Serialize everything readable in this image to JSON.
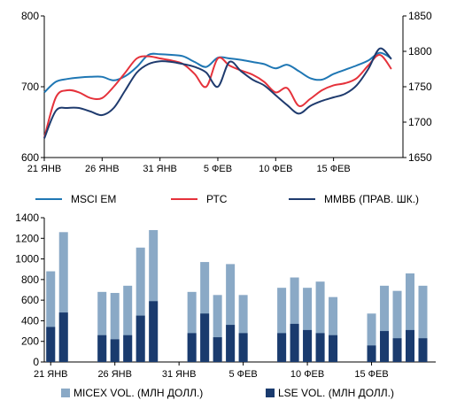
{
  "chart_data": [
    {
      "type": "line",
      "title": "",
      "xlabel": "",
      "ylabel": "",
      "x_tick_labels": [
        "21 ЯНВ",
        "26 ЯНВ",
        "31 ЯНВ",
        "5 ФЕВ",
        "10 ФЕВ",
        "15 ФЕВ"
      ],
      "x_tick_days": [
        0,
        5,
        10,
        15,
        20,
        25
      ],
      "ylim": [
        600,
        800
      ],
      "y_ticks": [
        "600",
        "700",
        "800"
      ],
      "y2lim": [
        1650,
        1850
      ],
      "y2_ticks": [
        "1650",
        "1700",
        "1750",
        "1800",
        "1850"
      ],
      "grid": false,
      "legend_position": "bottom",
      "series": [
        {
          "name": "MSCI EM",
          "axis": "left",
          "color": "#1f77b4",
          "points": [
            [
              0,
              692
            ],
            [
              1,
              707
            ],
            [
              2,
              711
            ],
            [
              3,
              713
            ],
            [
              4,
              714
            ],
            [
              5,
              714
            ],
            [
              6,
              709
            ],
            [
              7,
              715
            ],
            [
              8,
              728
            ],
            [
              9,
              745
            ],
            [
              10,
              746
            ],
            [
              11,
              745
            ],
            [
              12,
              743
            ],
            [
              13,
              735
            ],
            [
              14,
              728
            ],
            [
              15,
              741
            ],
            [
              16,
              740
            ],
            [
              17,
              738
            ],
            [
              18,
              735
            ],
            [
              19,
              732
            ],
            [
              20,
              726
            ],
            [
              21,
              731
            ],
            [
              22,
              722
            ],
            [
              23,
              712
            ],
            [
              24,
              710
            ],
            [
              25,
              718
            ],
            [
              26,
              724
            ],
            [
              27,
              730
            ],
            [
              28,
              737
            ],
            [
              29,
              748
            ],
            [
              30,
              740
            ]
          ]
        },
        {
          "name": "РТС",
          "axis": "left",
          "color": "#e5323b",
          "points": [
            [
              0,
              628
            ],
            [
              1,
              685
            ],
            [
              2,
              695
            ],
            [
              3,
              692
            ],
            [
              4,
              684
            ],
            [
              5,
              684
            ],
            [
              6,
              700
            ],
            [
              7,
              720
            ],
            [
              8,
              740
            ],
            [
              9,
              743
            ],
            [
              10,
              740
            ],
            [
              11,
              737
            ],
            [
              12,
              732
            ],
            [
              13,
              718
            ],
            [
              14,
              700
            ],
            [
              15,
              740
            ],
            [
              16,
              730
            ],
            [
              17,
              723
            ],
            [
              18,
              717
            ],
            [
              19,
              707
            ],
            [
              20,
              692
            ],
            [
              21,
              698
            ],
            [
              22,
              673
            ],
            [
              23,
              683
            ],
            [
              24,
              695
            ],
            [
              25,
              702
            ],
            [
              26,
              705
            ],
            [
              27,
              712
            ],
            [
              28,
              730
            ],
            [
              29,
              745
            ],
            [
              30,
              725
            ]
          ]
        },
        {
          "name": "ММВБ (ПРАВ. ШК.)",
          "axis": "right",
          "color": "#1f3b6e",
          "points": [
            [
              0,
              1677
            ],
            [
              1,
              1716
            ],
            [
              2,
              1720
            ],
            [
              3,
              1720
            ],
            [
              4,
              1715
            ],
            [
              5,
              1710
            ],
            [
              6,
              1720
            ],
            [
              7,
              1745
            ],
            [
              8,
              1770
            ],
            [
              9,
              1782
            ],
            [
              10,
              1786
            ],
            [
              11,
              1785
            ],
            [
              12,
              1782
            ],
            [
              13,
              1778
            ],
            [
              14,
              1770
            ],
            [
              15,
              1750
            ],
            [
              16,
              1785
            ],
            [
              17,
              1772
            ],
            [
              18,
              1760
            ],
            [
              19,
              1752
            ],
            [
              20,
              1738
            ],
            [
              21,
              1724
            ],
            [
              22,
              1712
            ],
            [
              23,
              1723
            ],
            [
              24,
              1730
            ],
            [
              25,
              1735
            ],
            [
              26,
              1740
            ],
            [
              27,
              1752
            ],
            [
              28,
              1775
            ],
            [
              29,
              1804
            ],
            [
              30,
              1789
            ]
          ]
        }
      ]
    },
    {
      "type": "bar",
      "title": "",
      "xlabel": "",
      "ylabel": "",
      "stacked": false,
      "ylim": [
        0,
        1400
      ],
      "y_ticks": [
        "0",
        "200",
        "400",
        "600",
        "800",
        "1000",
        "1200",
        "1400"
      ],
      "x_tick_labels": [
        "21 ЯНВ",
        "26 ЯНВ",
        "31 ЯНВ",
        "5 ФЕВ",
        "10 ФЕВ",
        "15 ФЕВ"
      ],
      "x_tick_days": [
        0,
        5,
        10,
        15,
        20,
        25
      ],
      "grid": false,
      "legend_position": "bottom",
      "days": [
        0,
        1,
        4,
        5,
        6,
        7,
        8,
        11,
        12,
        13,
        14,
        15,
        18,
        19,
        20,
        21,
        22,
        25,
        26,
        27,
        28,
        29
      ],
      "series": [
        {
          "name": "MICEX VOL. (МЛН ДОЛЛ.)",
          "color": "#8aa9c6",
          "values": [
            880,
            1260,
            680,
            670,
            740,
            1110,
            1280,
            680,
            970,
            650,
            950,
            650,
            720,
            820,
            720,
            780,
            630,
            470,
            740,
            690,
            860,
            740
          ]
        },
        {
          "name": "LSE VOL. (МЛН ДОЛЛ.)",
          "color": "#1a3b6e",
          "values": [
            340,
            480,
            260,
            220,
            260,
            450,
            590,
            280,
            470,
            240,
            360,
            280,
            280,
            370,
            310,
            280,
            260,
            160,
            300,
            230,
            310,
            230
          ]
        }
      ]
    }
  ]
}
